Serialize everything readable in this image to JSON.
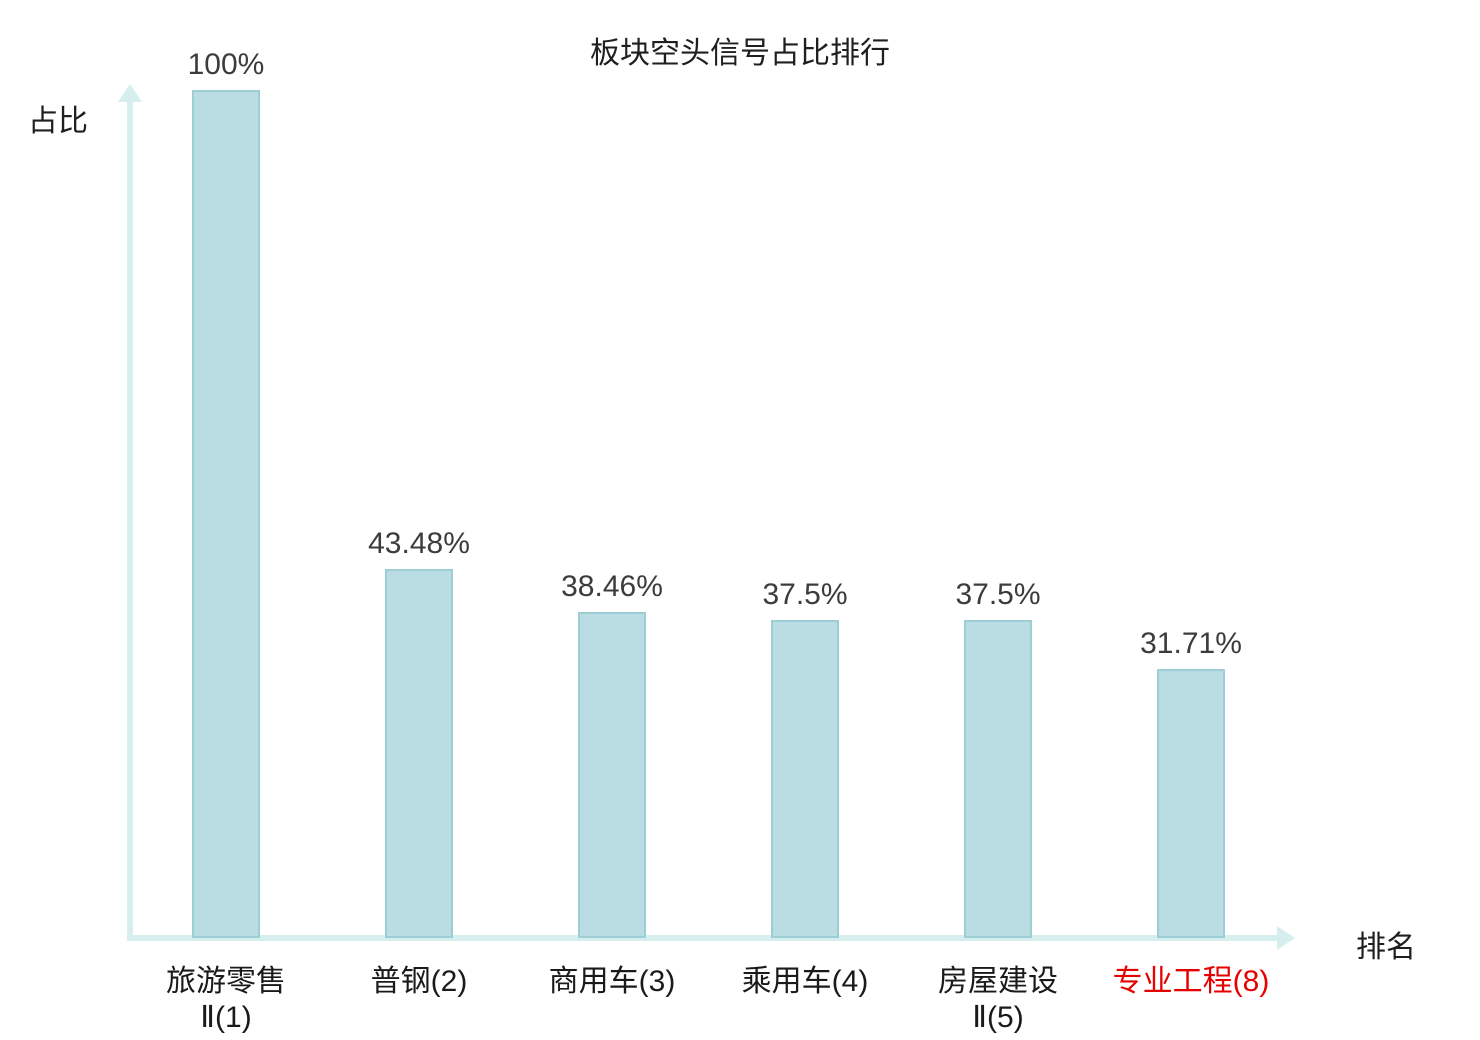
{
  "chart_data": {
    "type": "bar",
    "title": "板块空头信号占比排行",
    "xlabel": "排名",
    "ylabel": "占比",
    "ylim": [
      0,
      100
    ],
    "grid": false,
    "legend_position": "none",
    "categories": [
      "旅游零售Ⅱ(1)",
      "普钢(2)",
      "商用车(3)",
      "乘用车(4)",
      "房屋建设Ⅱ(5)",
      "专业工程(8)"
    ],
    "category_lines": [
      [
        "旅游零售",
        "Ⅱ(1)"
      ],
      [
        "普钢(2)"
      ],
      [
        "商用车(3)"
      ],
      [
        "乘用车(4)"
      ],
      [
        "房屋建设",
        "Ⅱ(5)"
      ],
      [
        "专业工程(8)"
      ]
    ],
    "values": [
      100,
      43.48,
      38.46,
      37.5,
      37.5,
      31.71
    ],
    "value_labels": [
      "100%",
      "43.48%",
      "38.46%",
      "37.5%",
      "37.5%",
      "31.71%"
    ],
    "highlight_index": 5,
    "colors": {
      "bar_fill": "#b9dde2",
      "bar_border": "#9dced5",
      "axis": "#d7eeee",
      "label_text": "#3c3c3c",
      "category_text": "#1a1a1a",
      "highlight_text": "#e60000"
    }
  }
}
